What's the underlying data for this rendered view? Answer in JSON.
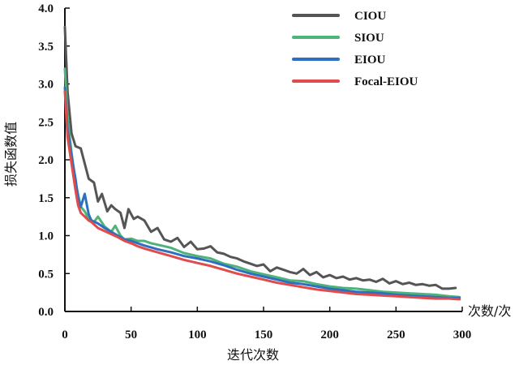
{
  "chart_data": {
    "type": "line",
    "xlabel": "迭代次数",
    "ylabel": "损失函数值",
    "x_unit": "次数/次",
    "xlim": [
      0,
      300
    ],
    "ylim": [
      0,
      4.0
    ],
    "x_ticks": [
      0,
      50,
      100,
      150,
      200,
      250,
      300
    ],
    "y_ticks": [
      "0.0",
      "0.5",
      "1.0",
      "1.5",
      "2.0",
      "2.5",
      "3.0",
      "3.5",
      "4.0"
    ],
    "grid": false,
    "legend_position": "top-right",
    "series": [
      {
        "name": "CIOU",
        "color": "#555555",
        "x": [
          0,
          2,
          5,
          8,
          12,
          15,
          18,
          22,
          25,
          28,
          32,
          35,
          38,
          42,
          45,
          48,
          52,
          55,
          60,
          65,
          70,
          75,
          80,
          85,
          90,
          95,
          100,
          105,
          110,
          115,
          120,
          125,
          130,
          135,
          140,
          145,
          150,
          155,
          160,
          165,
          170,
          175,
          180,
          185,
          190,
          195,
          200,
          205,
          210,
          215,
          220,
          225,
          230,
          235,
          240,
          245,
          250,
          255,
          260,
          265,
          270,
          275,
          280,
          285,
          290,
          295
        ],
        "y": [
          3.75,
          2.9,
          2.35,
          2.18,
          2.15,
          1.95,
          1.75,
          1.7,
          1.45,
          1.55,
          1.32,
          1.4,
          1.35,
          1.3,
          1.1,
          1.35,
          1.22,
          1.25,
          1.2,
          1.05,
          1.1,
          0.95,
          0.92,
          0.97,
          0.85,
          0.92,
          0.82,
          0.83,
          0.86,
          0.78,
          0.76,
          0.72,
          0.7,
          0.66,
          0.63,
          0.6,
          0.62,
          0.53,
          0.58,
          0.55,
          0.52,
          0.5,
          0.56,
          0.48,
          0.52,
          0.45,
          0.48,
          0.44,
          0.46,
          0.42,
          0.44,
          0.41,
          0.42,
          0.39,
          0.43,
          0.37,
          0.4,
          0.36,
          0.38,
          0.35,
          0.36,
          0.34,
          0.35,
          0.3,
          0.3,
          0.31
        ]
      },
      {
        "name": "SIOU",
        "color": "#4db37a",
        "x": [
          0,
          2,
          5,
          8,
          12,
          15,
          18,
          22,
          25,
          30,
          35,
          38,
          42,
          45,
          50,
          55,
          60,
          65,
          70,
          75,
          80,
          90,
          100,
          110,
          120,
          130,
          140,
          150,
          160,
          170,
          180,
          190,
          200,
          210,
          220,
          230,
          240,
          250,
          260,
          270,
          280,
          290,
          298
        ],
        "y": [
          3.2,
          2.55,
          2.1,
          1.7,
          1.38,
          1.32,
          1.22,
          1.18,
          1.25,
          1.12,
          1.05,
          1.13,
          1.0,
          0.95,
          0.96,
          0.93,
          0.93,
          0.9,
          0.88,
          0.86,
          0.84,
          0.77,
          0.73,
          0.7,
          0.63,
          0.59,
          0.53,
          0.49,
          0.45,
          0.41,
          0.4,
          0.36,
          0.33,
          0.31,
          0.3,
          0.28,
          0.26,
          0.25,
          0.24,
          0.23,
          0.22,
          0.2,
          0.19
        ]
      },
      {
        "name": "EIOU",
        "color": "#2e6fc0",
        "x": [
          0,
          2,
          5,
          8,
          10,
          12,
          15,
          18,
          20,
          25,
          30,
          35,
          40,
          45,
          50,
          55,
          60,
          70,
          80,
          90,
          100,
          110,
          120,
          130,
          140,
          150,
          160,
          170,
          180,
          190,
          200,
          210,
          220,
          230,
          240,
          250,
          260,
          270,
          280,
          290,
          298
        ],
        "y": [
          2.95,
          2.4,
          2.05,
          1.75,
          1.5,
          1.38,
          1.55,
          1.28,
          1.2,
          1.16,
          1.1,
          1.05,
          1.0,
          0.95,
          0.93,
          0.9,
          0.87,
          0.82,
          0.78,
          0.73,
          0.7,
          0.66,
          0.61,
          0.55,
          0.5,
          0.46,
          0.42,
          0.38,
          0.36,
          0.33,
          0.3,
          0.28,
          0.26,
          0.25,
          0.24,
          0.22,
          0.21,
          0.2,
          0.19,
          0.18,
          0.18
        ]
      },
      {
        "name": "Focal-EIOU",
        "color": "#e04b4b",
        "x": [
          0,
          2,
          5,
          8,
          10,
          12,
          15,
          18,
          20,
          25,
          30,
          35,
          40,
          45,
          50,
          55,
          60,
          70,
          80,
          90,
          100,
          110,
          120,
          130,
          140,
          150,
          160,
          170,
          180,
          190,
          200,
          210,
          220,
          230,
          240,
          250,
          260,
          270,
          280,
          290,
          298
        ],
        "y": [
          2.9,
          2.3,
          1.95,
          1.6,
          1.4,
          1.3,
          1.25,
          1.2,
          1.18,
          1.1,
          1.06,
          1.02,
          0.98,
          0.93,
          0.9,
          0.86,
          0.83,
          0.78,
          0.73,
          0.68,
          0.64,
          0.6,
          0.55,
          0.5,
          0.46,
          0.42,
          0.38,
          0.35,
          0.32,
          0.29,
          0.27,
          0.25,
          0.23,
          0.22,
          0.21,
          0.2,
          0.19,
          0.18,
          0.17,
          0.17,
          0.16
        ]
      }
    ]
  }
}
